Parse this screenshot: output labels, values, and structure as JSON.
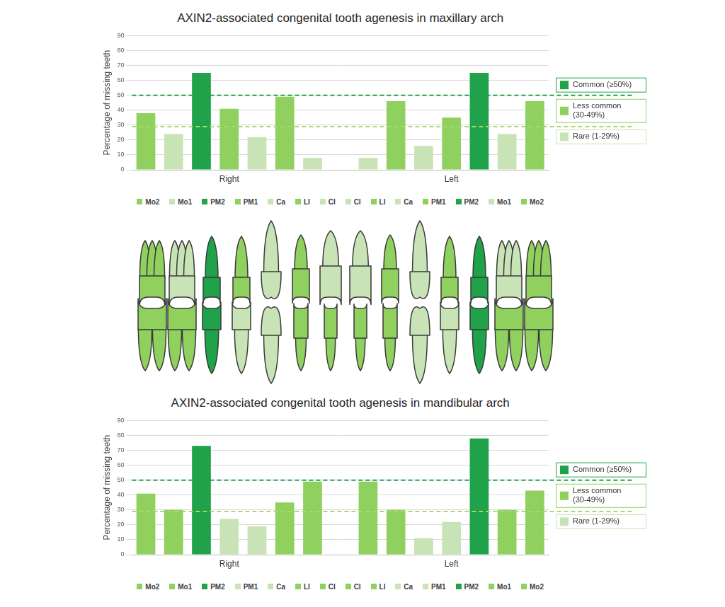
{
  "chart_data": [
    {
      "type": "bar",
      "title": "AXIN2-associated congenital tooth agenesis in maxillary arch",
      "y_label": "Percentage of missing teeth",
      "groups": [
        "Right",
        "Left"
      ],
      "categories": [
        "Mo2",
        "Mo1",
        "PM2",
        "PM1",
        "Ca",
        "LI",
        "CI",
        null,
        "CI",
        "LI",
        "Ca",
        "PM1",
        "PM2",
        "Mo1",
        "Mo2"
      ],
      "values": [
        38,
        24,
        65,
        41,
        22,
        49,
        8,
        null,
        8,
        46,
        16,
        35,
        65,
        24,
        46
      ],
      "colors": [
        "#8fd05e",
        "#c8e4b6",
        "#1fa24a",
        "#8fd05e",
        "#c8e4b6",
        "#8fd05e",
        "#c8e4b6",
        null,
        "#c8e4b6",
        "#8fd05e",
        "#c8e4b6",
        "#8fd05e",
        "#1fa24a",
        "#c8e4b6",
        "#8fd05e"
      ],
      "ylim": [
        0,
        90
      ],
      "yticks": [
        0,
        10,
        20,
        30,
        40,
        50,
        60,
        70,
        80,
        90
      ],
      "grid": true,
      "tick_labels": "y",
      "legend": "bottom",
      "reference_lines": [
        {
          "value": 50,
          "color": "#1fa24a"
        },
        {
          "value": 29,
          "color": "#a8d86e"
        }
      ],
      "bands": [
        {
          "label": "Common (≥50%)",
          "color": "#1fa24a"
        },
        {
          "label": "Less common (30-49%)",
          "color": "#8fd05e"
        },
        {
          "label": "Rare (1-29%)",
          "color": "#c8e4b6"
        }
      ]
    },
    {
      "type": "bar",
      "title": "AXIN2-associated congenital tooth agenesis in mandibular arch",
      "y_label": "Percentage of missing teeth",
      "groups": [
        "Right",
        "Left"
      ],
      "categories": [
        "Mo2",
        "Mo1",
        "PM2",
        "PM1",
        "Ca",
        "LI",
        "CI",
        null,
        "CI",
        "LI",
        "Ca",
        "PM1",
        "PM2",
        "Mo1",
        "Mo2"
      ],
      "values": [
        41,
        30,
        73,
        24,
        19,
        35,
        49,
        null,
        49,
        30,
        11,
        22,
        78,
        30,
        43
      ],
      "colors": [
        "#8fd05e",
        "#8fd05e",
        "#1fa24a",
        "#c8e4b6",
        "#c8e4b6",
        "#8fd05e",
        "#8fd05e",
        null,
        "#8fd05e",
        "#8fd05e",
        "#c8e4b6",
        "#c8e4b6",
        "#1fa24a",
        "#8fd05e",
        "#8fd05e"
      ],
      "ylim": [
        0,
        90
      ],
      "yticks": [
        0,
        10,
        20,
        30,
        40,
        50,
        60,
        70,
        80,
        90
      ],
      "grid": true,
      "tick_labels": "y",
      "legend": "bottom",
      "reference_lines": [
        {
          "value": 50,
          "color": "#1fa24a"
        },
        {
          "value": 29,
          "color": "#a8d86e"
        }
      ],
      "bands": [
        {
          "label": "Common (≥50%)",
          "color": "#1fa24a"
        },
        {
          "label": "Less common (30-49%)",
          "color": "#8fd05e"
        },
        {
          "label": "Rare (1-29%)",
          "color": "#c8e4b6"
        }
      ]
    }
  ]
}
